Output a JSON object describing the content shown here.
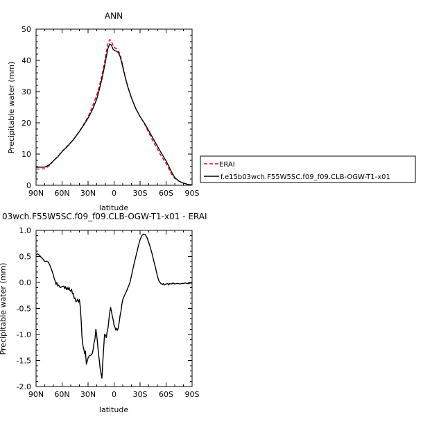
{
  "chart_data": [
    {
      "type": "line",
      "title": "ANN",
      "xlabel": "latitude",
      "ylabel": "Precipitable water (mm)",
      "xlim": [
        -90,
        90
      ],
      "ylim": [
        0,
        50
      ],
      "x_ticks": [
        -90,
        -60,
        -30,
        0,
        30,
        60,
        90
      ],
      "x_tick_labels": [
        "90N",
        "60N",
        "30N",
        "0",
        "30S",
        "60S",
        "90S"
      ],
      "y_ticks": [
        0,
        10,
        20,
        30,
        40,
        50
      ],
      "y_tick_labels": [
        "0",
        "10",
        "20",
        "30",
        "40",
        "50"
      ],
      "grid": false,
      "legend_placement": "right",
      "series": [
        {
          "name": "ERAI",
          "color": "#e8000b",
          "dash": "dashed",
          "points": [
            [
              -90,
              5.2
            ],
            [
              -85,
              5.2
            ],
            [
              -80,
              5.3
            ],
            [
              -75,
              6.2
            ],
            [
              -70,
              7.8
            ],
            [
              -65,
              9.2
            ],
            [
              -60,
              10.9
            ],
            [
              -55,
              12.3
            ],
            [
              -50,
              13.7
            ],
            [
              -45,
              15.4
            ],
            [
              -40,
              17.3
            ],
            [
              -35,
              19.6
            ],
            [
              -30,
              21.9
            ],
            [
              -25,
              25.2
            ],
            [
              -20,
              28.9
            ],
            [
              -17,
              31.8
            ],
            [
              -14,
              35.3
            ],
            [
              -11,
              39.3
            ],
            [
              -9,
              42.6
            ],
            [
              -7,
              45.6
            ],
            [
              -5,
              46.7
            ],
            [
              -3,
              46.1
            ],
            [
              -1,
              44.6
            ],
            [
              1,
              44.0
            ],
            [
              3,
              43.7
            ],
            [
              5,
              43.0
            ],
            [
              7,
              41.9
            ],
            [
              9,
              39.6
            ],
            [
              11,
              37.1
            ],
            [
              13,
              34.6
            ],
            [
              16,
              31.4
            ],
            [
              20,
              28.1
            ],
            [
              25,
              24.6
            ],
            [
              30,
              22.0
            ],
            [
              35,
              19.7
            ],
            [
              40,
              16.9
            ],
            [
              45,
              14.0
            ],
            [
              50,
              11.6
            ],
            [
              55,
              9.1
            ],
            [
              60,
              7.0
            ],
            [
              63,
              5.4
            ],
            [
              66,
              3.7
            ],
            [
              70,
              2.2
            ],
            [
              75,
              1.3
            ],
            [
              80,
              0.7
            ],
            [
              85,
              0.3
            ],
            [
              90,
              0.1
            ]
          ]
        },
        {
          "name": "f.e15b03wch.F55W5SC.f09_f09.CLB-OGW-T1-x01",
          "color": "#000000",
          "dash": "solid",
          "points": [
            [
              -90,
              5.8
            ],
            [
              -85,
              5.8
            ],
            [
              -80,
              5.8
            ],
            [
              -75,
              6.5
            ],
            [
              -70,
              7.8
            ],
            [
              -65,
              9.1
            ],
            [
              -60,
              10.8
            ],
            [
              -55,
              12.1
            ],
            [
              -50,
              13.6
            ],
            [
              -45,
              15.3
            ],
            [
              -40,
              17.2
            ],
            [
              -35,
              19.3
            ],
            [
              -30,
              21.5
            ],
            [
              -25,
              24.2
            ],
            [
              -20,
              27.6
            ],
            [
              -17,
              30.7
            ],
            [
              -14,
              34.1
            ],
            [
              -11,
              38.1
            ],
            [
              -9,
              41.1
            ],
            [
              -7,
              43.9
            ],
            [
              -5,
              45.3
            ],
            [
              -3,
              44.8
            ],
            [
              -1,
              43.5
            ],
            [
              1,
              43.1
            ],
            [
              3,
              42.9
            ],
            [
              5,
              42.5
            ],
            [
              7,
              41.2
            ],
            [
              9,
              39.1
            ],
            [
              11,
              36.8
            ],
            [
              13,
              34.4
            ],
            [
              16,
              31.4
            ],
            [
              20,
              28.0
            ],
            [
              25,
              24.6
            ],
            [
              30,
              22.0
            ],
            [
              35,
              19.9
            ],
            [
              40,
              17.5
            ],
            [
              45,
              15.0
            ],
            [
              50,
              12.5
            ],
            [
              55,
              10.1
            ],
            [
              60,
              7.8
            ],
            [
              63,
              6.2
            ],
            [
              66,
              4.4
            ],
            [
              70,
              2.5
            ],
            [
              75,
              1.3
            ],
            [
              80,
              0.7
            ],
            [
              85,
              0.3
            ],
            [
              90,
              0.1
            ]
          ]
        }
      ]
    },
    {
      "type": "line",
      "title": "03wch.F55W5SC.f09_f09.CLB-OGW-T1-x01 - ERAI",
      "xlabel": "latitude",
      "ylabel": "Precipitable water (mm)",
      "xlim": [
        -90,
        90
      ],
      "ylim": [
        -2.0,
        1.0
      ],
      "x_ticks": [
        -90,
        -60,
        -30,
        0,
        30,
        60,
        90
      ],
      "x_tick_labels": [
        "90N",
        "60N",
        "30N",
        "0",
        "30S",
        "60S",
        "90S"
      ],
      "y_ticks": [
        -2.0,
        -1.5,
        -1.0,
        -0.5,
        0.0,
        0.5,
        1.0
      ],
      "y_tick_labels": [
        "-2.0",
        "-1.5",
        "-1.0",
        "-0.5",
        "0.0",
        "0.5",
        "1.0"
      ],
      "grid": false,
      "series": [
        {
          "color": "#000000",
          "dash": "solid",
          "points": [
            [
              -90,
              0.53
            ],
            [
              -88,
              0.55
            ],
            [
              -86,
              0.52
            ],
            [
              -84,
              0.48
            ],
            [
              -82,
              0.45
            ],
            [
              -80,
              0.4
            ],
            [
              -78,
              0.41
            ],
            [
              -76,
              0.39
            ],
            [
              -74,
              0.33
            ],
            [
              -72,
              0.24
            ],
            [
              -70,
              0.14
            ],
            [
              -69,
              0.07
            ],
            [
              -68,
              0.03
            ],
            [
              -67,
              -0.04
            ],
            [
              -66,
              0.0
            ],
            [
              -65,
              -0.07
            ],
            [
              -64,
              -0.05
            ],
            [
              -62,
              -0.1
            ],
            [
              -60,
              -0.08
            ],
            [
              -58,
              -0.07
            ],
            [
              -57,
              -0.12
            ],
            [
              -56,
              -0.08
            ],
            [
              -55,
              -0.14
            ],
            [
              -54,
              -0.1
            ],
            [
              -53,
              -0.14
            ],
            [
              -52,
              -0.09
            ],
            [
              -51,
              -0.15
            ],
            [
              -50,
              -0.17
            ],
            [
              -49,
              -0.13
            ],
            [
              -48,
              -0.22
            ],
            [
              -47,
              -0.21
            ],
            [
              -46,
              -0.31
            ],
            [
              -45,
              -0.3
            ],
            [
              -44,
              -0.37
            ],
            [
              -43,
              -0.36
            ],
            [
              -42,
              -0.32
            ],
            [
              -41,
              -0.38
            ],
            [
              -40,
              -0.33
            ],
            [
              -39,
              -0.47
            ],
            [
              -38,
              -0.72
            ],
            [
              -37,
              -1.05
            ],
            [
              -36,
              -1.21
            ],
            [
              -35,
              -1.28
            ],
            [
              -34,
              -1.37
            ],
            [
              -33,
              -1.32
            ],
            [
              -32,
              -1.57
            ],
            [
              -31,
              -1.52
            ],
            [
              -30,
              -1.45
            ],
            [
              -29,
              -1.42
            ],
            [
              -28,
              -1.4
            ],
            [
              -27,
              -1.4
            ],
            [
              -26,
              -1.38
            ],
            [
              -25,
              -1.36
            ],
            [
              -24,
              -1.27
            ],
            [
              -23,
              -1.15
            ],
            [
              -22,
              -1.08
            ],
            [
              -21,
              -0.9
            ],
            [
              -20,
              -1.02
            ],
            [
              -19,
              -1.18
            ],
            [
              -18,
              -1.37
            ],
            [
              -17,
              -1.5
            ],
            [
              -16,
              -1.66
            ],
            [
              -15,
              -1.75
            ],
            [
              -14,
              -1.84
            ],
            [
              -13,
              -1.52
            ],
            [
              -12,
              -1.26
            ],
            [
              -11,
              -1.0
            ],
            [
              -10,
              -1.01
            ],
            [
              -9,
              -1.06
            ],
            [
              -8,
              -0.95
            ],
            [
              -7,
              -0.88
            ],
            [
              -6,
              -0.72
            ],
            [
              -5,
              -0.58
            ],
            [
              -4,
              -0.48
            ],
            [
              -3,
              -0.56
            ],
            [
              -2,
              -0.65
            ],
            [
              -1,
              -0.72
            ],
            [
              0,
              -0.82
            ],
            [
              1,
              -0.86
            ],
            [
              2,
              -0.92
            ],
            [
              3,
              -0.88
            ],
            [
              4,
              -0.92
            ],
            [
              5,
              -0.86
            ],
            [
              6,
              -0.75
            ],
            [
              7,
              -0.63
            ],
            [
              8,
              -0.55
            ],
            [
              9,
              -0.42
            ],
            [
              10,
              -0.33
            ],
            [
              12,
              -0.25
            ],
            [
              14,
              -0.18
            ],
            [
              16,
              -0.1
            ],
            [
              18,
              -0.02
            ],
            [
              20,
              0.12
            ],
            [
              22,
              0.28
            ],
            [
              24,
              0.42
            ],
            [
              26,
              0.56
            ],
            [
              28,
              0.7
            ],
            [
              30,
              0.82
            ],
            [
              32,
              0.9
            ],
            [
              34,
              0.93
            ],
            [
              36,
              0.92
            ],
            [
              38,
              0.86
            ],
            [
              40,
              0.77
            ],
            [
              42,
              0.66
            ],
            [
              44,
              0.54
            ],
            [
              46,
              0.4
            ],
            [
              48,
              0.27
            ],
            [
              50,
              0.12
            ],
            [
              52,
              0.02
            ],
            [
              54,
              -0.02
            ],
            [
              56,
              -0.04
            ],
            [
              57,
              -0.02
            ],
            [
              58,
              -0.05
            ],
            [
              60,
              -0.03
            ],
            [
              62,
              -0.02
            ],
            [
              63,
              -0.05
            ],
            [
              64,
              -0.02
            ],
            [
              66,
              -0.03
            ],
            [
              68,
              -0.01
            ],
            [
              70,
              -0.03
            ],
            [
              72,
              -0.02
            ],
            [
              74,
              -0.02
            ],
            [
              76,
              -0.03
            ],
            [
              78,
              -0.02
            ],
            [
              80,
              -0.02
            ],
            [
              82,
              -0.01
            ],
            [
              84,
              -0.02
            ],
            [
              86,
              -0.02
            ],
            [
              88,
              -0.01
            ],
            [
              90,
              -0.01
            ]
          ]
        }
      ]
    }
  ]
}
